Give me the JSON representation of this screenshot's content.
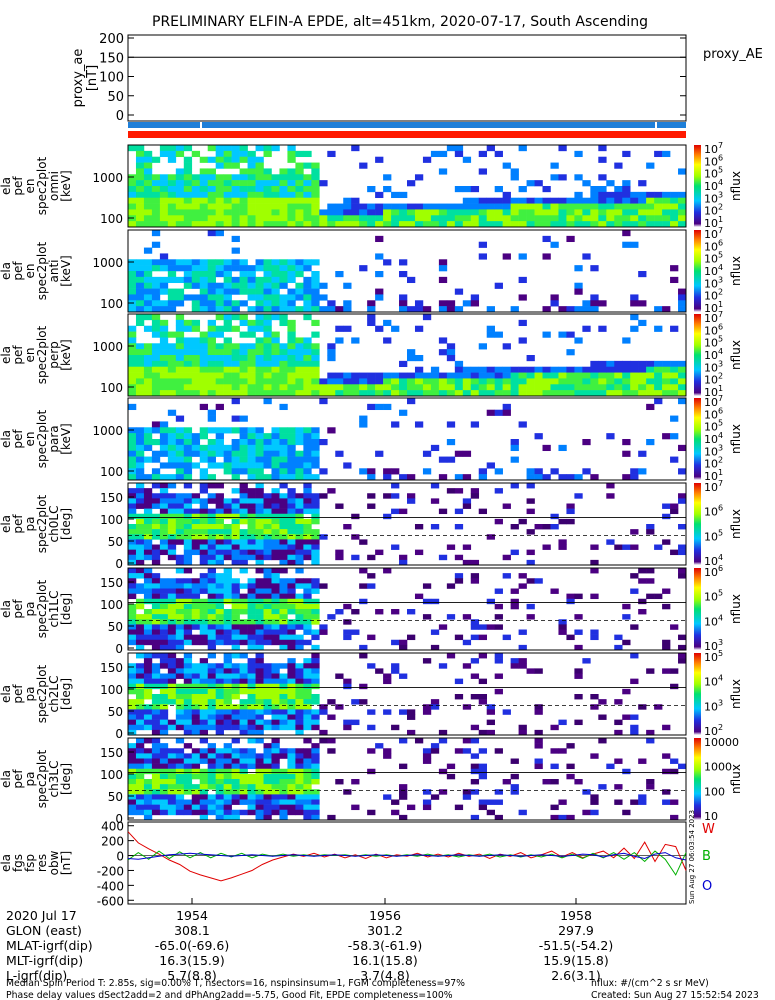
{
  "title": "PRELIMINARY ELFIN-A EPDE, alt=451km, 2020-07-17, South Ascending",
  "ae_panel": {
    "ylabel": [
      "proxy_ae",
      "[nT]"
    ],
    "yticks": [
      200,
      150,
      100,
      50,
      0
    ],
    "ylim": [
      0,
      200
    ],
    "value": 150,
    "legend": "proxy_AE"
  },
  "status_bars": {
    "top_color": "#1e7fd8",
    "bottom_color": "#ff0000",
    "mid_color": "#ff8c00"
  },
  "spectrograms": [
    {
      "id": "en0",
      "ylabel": [
        "ela",
        "pef",
        "en",
        "spec2plot",
        "omni",
        "[keV]"
      ],
      "yticks": [
        "1000",
        "100"
      ],
      "cbar_ticks": [
        "10",
        "10",
        "10",
        "10",
        "10",
        "10",
        "10"
      ],
      "cbar_exp": [
        "7",
        "6",
        "5",
        "4",
        "3",
        "2",
        "1"
      ],
      "zlabel": "nflux"
    },
    {
      "id": "en1",
      "ylabel": [
        "ela",
        "pef",
        "en",
        "spec2plot",
        "anti",
        "[keV]"
      ],
      "yticks": [
        "1000",
        "100"
      ],
      "cbar_ticks": [
        "10",
        "10",
        "10",
        "10",
        "10",
        "10",
        "10"
      ],
      "cbar_exp": [
        "7",
        "6",
        "5",
        "4",
        "3",
        "2",
        "1"
      ],
      "zlabel": "nflux"
    },
    {
      "id": "en2",
      "ylabel": [
        "ela",
        "pef",
        "en",
        "spec2plot",
        "perp",
        "[keV]"
      ],
      "yticks": [
        "1000",
        "100"
      ],
      "cbar_ticks": [
        "10",
        "10",
        "10",
        "10",
        "10",
        "10",
        "10"
      ],
      "cbar_exp": [
        "7",
        "6",
        "5",
        "4",
        "3",
        "2",
        "1"
      ],
      "zlabel": "nflux"
    },
    {
      "id": "en3",
      "ylabel": [
        "ela",
        "pef",
        "en",
        "spec2plot",
        "para",
        "[keV]"
      ],
      "yticks": [
        "1000",
        "100"
      ],
      "cbar_ticks": [
        "10",
        "10",
        "10",
        "10",
        "10",
        "10",
        "10"
      ],
      "cbar_exp": [
        "7",
        "6",
        "5",
        "4",
        "3",
        "2",
        "1"
      ],
      "zlabel": "nflux"
    },
    {
      "id": "pa0",
      "ylabel": [
        "ela",
        "pef",
        "pa",
        "spec2plot",
        "ch0LC",
        "[deg]"
      ],
      "yticks": [
        "150",
        "100",
        "50",
        "0"
      ],
      "cbar_ticks": [
        "10",
        "10",
        "10",
        "10"
      ],
      "cbar_exp": [
        "7",
        "6",
        "5",
        "4"
      ],
      "zlabel": "nflux"
    },
    {
      "id": "pa1",
      "ylabel": [
        "ela",
        "pef",
        "pa",
        "spec2plot",
        "ch1LC",
        "[deg]"
      ],
      "yticks": [
        "150",
        "100",
        "50",
        "0"
      ],
      "cbar_ticks": [
        "10",
        "10",
        "10",
        "10"
      ],
      "cbar_exp": [
        "6",
        "5",
        "4",
        "3"
      ],
      "zlabel": "nflux"
    },
    {
      "id": "pa2",
      "ylabel": [
        "ela",
        "pef",
        "pa",
        "spec2plot",
        "ch2LC",
        "[deg]"
      ],
      "yticks": [
        "150",
        "100",
        "50",
        "0"
      ],
      "cbar_ticks": [
        "10",
        "10",
        "10",
        "10"
      ],
      "cbar_exp": [
        "5",
        "4",
        "3",
        "2"
      ],
      "zlabel": "nflux"
    },
    {
      "id": "pa3",
      "ylabel": [
        "ela",
        "pef",
        "pa",
        "spec2plot",
        "ch3LC",
        "[deg]"
      ],
      "yticks": [
        "150",
        "100",
        "50",
        "0"
      ],
      "cbar_ticks": [
        "10000",
        "1000",
        "100",
        "10"
      ],
      "cbar_exp": [
        "",
        "",
        "",
        ""
      ],
      "zlabel": "nflux"
    }
  ],
  "chart_data": {
    "type": "line",
    "xlabel": "",
    "ylabel": [
      "ela",
      "fgs",
      "fsp",
      "res",
      "obw",
      "[nT]"
    ],
    "yticks": [
      400,
      200,
      0,
      -200,
      -400,
      -600
    ],
    "ylim": [
      -650,
      450
    ],
    "series": [
      {
        "name": "W",
        "color": "#e00000",
        "values": [
          320,
          170,
          90,
          20,
          -60,
          -120,
          -210,
          -260,
          -300,
          -340,
          -300,
          -250,
          -200,
          -120,
          -60,
          -20,
          20,
          -10,
          30,
          -20,
          20,
          -30,
          10,
          -40,
          20,
          -30,
          10,
          -10,
          30,
          -20,
          20,
          -20,
          30,
          -10,
          20,
          -40,
          20,
          -10,
          40,
          -30,
          10,
          60,
          -20,
          40,
          -30,
          20,
          60,
          -30,
          100,
          -40,
          180,
          -80,
          150,
          120,
          -200
        ]
      },
      {
        "name": "B",
        "color": "#00b000",
        "values": [
          -60,
          40,
          -50,
          60,
          -40,
          50,
          -30,
          40,
          -30,
          30,
          -20,
          30,
          -30,
          20,
          -10,
          20,
          -10,
          10,
          -10,
          10,
          0,
          10,
          -10,
          10,
          -10,
          10,
          -10,
          10,
          -10,
          20,
          -10,
          10,
          -20,
          10,
          -10,
          20,
          -20,
          10,
          -20,
          10,
          -20,
          20,
          -30,
          20,
          -40,
          30,
          -30,
          40,
          -50,
          40,
          -80,
          60,
          -50,
          -260,
          40
        ]
      },
      {
        "name": "O",
        "color": "#0000d0",
        "values": [
          -40,
          -50,
          -30,
          -10,
          10,
          20,
          30,
          20,
          10,
          0,
          -10,
          0,
          10,
          0,
          -10,
          0,
          10,
          0,
          -10,
          0,
          10,
          0,
          -10,
          0,
          10,
          0,
          -10,
          0,
          10,
          0,
          -10,
          0,
          10,
          0,
          -10,
          0,
          10,
          0,
          -10,
          0,
          10,
          0,
          -10,
          0,
          20,
          10,
          -20,
          10,
          30,
          -10,
          -40,
          20,
          40,
          -30,
          -60
        ]
      }
    ]
  },
  "side_stamp": "Sun Aug 27 06:03:54 2023",
  "xaxis": {
    "row_labels": [
      "2020 Jul 17",
      "GLON (east)",
      "MLAT-igrf(dip)",
      "MLT-igrf(dip)",
      "L-igrf(dip)"
    ],
    "columns": [
      {
        "time": "1954",
        "glon": "308.1",
        "mlat": "-65.0(-69.6)",
        "mlt": "16.3(15.9)",
        "l": "5.7(8.8)"
      },
      {
        "time": "1956",
        "glon": "301.2",
        "mlat": "-58.3(-61.9)",
        "mlt": "16.1(15.8)",
        "l": "3.7(4.8)"
      },
      {
        "time": "1958",
        "glon": "297.9",
        "mlat": "-51.5(-54.2)",
        "mlt": "15.9(15.8)",
        "l": "2.6(3.1)"
      }
    ]
  },
  "footer": {
    "left1": "Median Spin Period T: 2.85s, sig=0.00% T, nsectors=16, nspinsinsum=1, FGM completeness=97%",
    "left2": "Phase delay values dSect2add=2 and dPhAng2add=-5.75, Good Fit, EPDE completeness=100%",
    "right1": "nflux: #/(cm^2 s sr MeV)",
    "right2": "Created: Sun Aug 27 15:52:54 2023"
  }
}
